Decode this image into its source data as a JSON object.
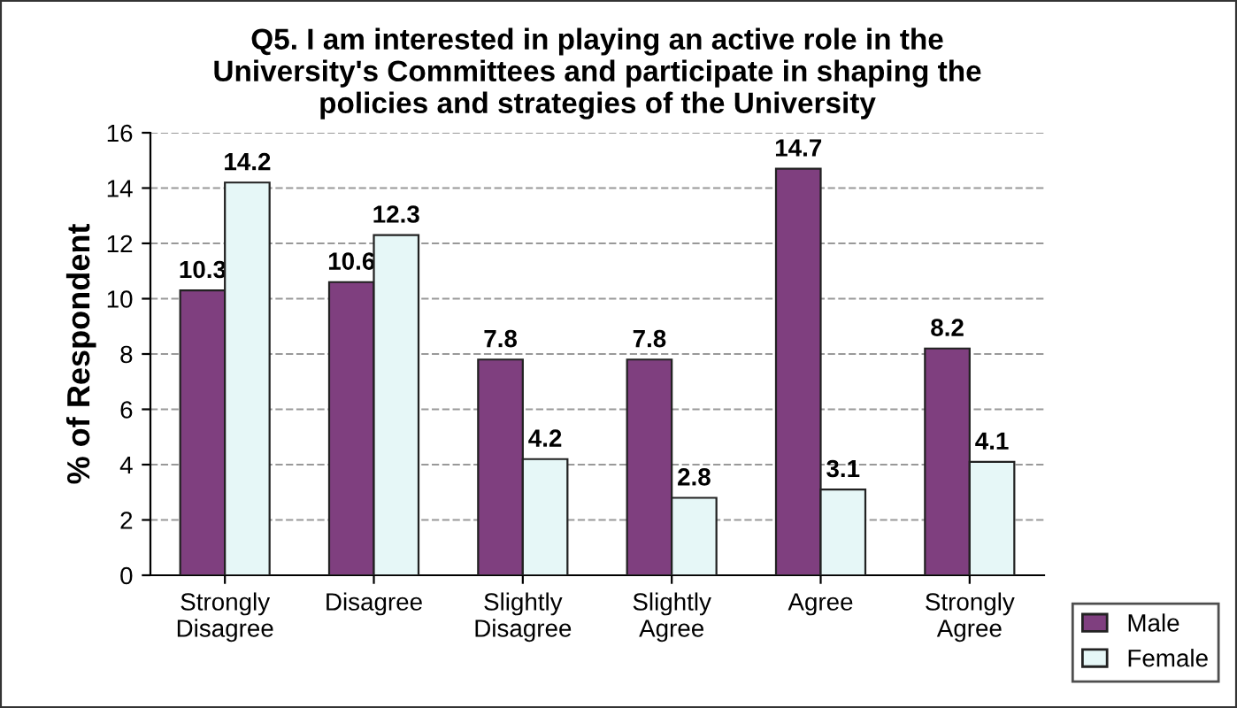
{
  "chart_data": {
    "type": "bar",
    "title": "Q5. I am interested in playing an active role in the\nUniversity's Committees and participate in shaping the\npolicies and strategies of the University",
    "ylabel": "% of Respondent",
    "categories": [
      "Strongly\nDisagree",
      "Disagree",
      "Slightly\nDisagree",
      "Slightly\nAgree",
      "Agree",
      "Strongly\nAgree"
    ],
    "series": [
      {
        "name": "Male",
        "color": "#7f3f7f",
        "values": [
          10.3,
          10.6,
          7.8,
          7.8,
          14.7,
          8.2
        ]
      },
      {
        "name": "Female",
        "color": "#e6f7f7",
        "values": [
          14.2,
          12.3,
          4.2,
          2.8,
          3.1,
          4.1
        ]
      }
    ],
    "ylim": [
      0,
      16
    ],
    "yticks": [
      0,
      2,
      4,
      6,
      8,
      10,
      12,
      14,
      16
    ],
    "grid": "y",
    "legend": "bottom right",
    "data_labels": true
  }
}
